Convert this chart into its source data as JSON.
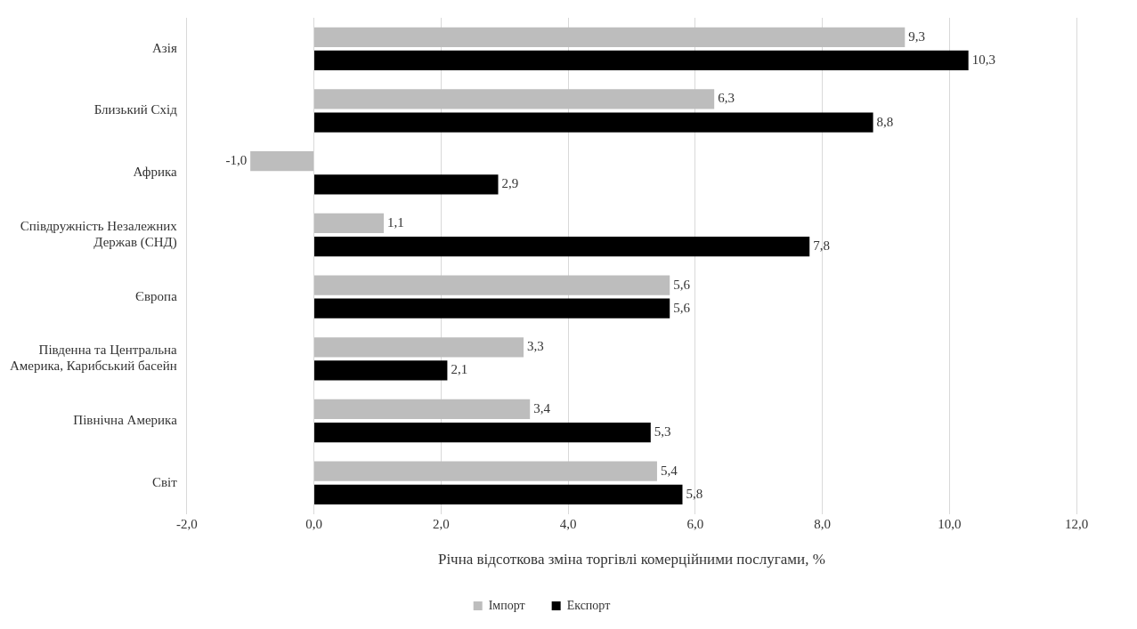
{
  "chart_data": {
    "type": "bar",
    "orientation": "horizontal",
    "categories": [
      "Азія",
      "Близький Схід",
      "Африка",
      "Співдружність Незалежних Держав (СНД)",
      "Європа",
      "Південна та Центральна Америка, Карибський басейн",
      "Північна Америка",
      "Світ"
    ],
    "series": [
      {
        "name": "Імпорт",
        "color": "#bdbdbd",
        "values": [
          9.3,
          6.3,
          -1.0,
          1.1,
          5.6,
          3.3,
          3.4,
          5.4
        ],
        "value_labels": [
          "9,3",
          "6,3",
          "-1,0",
          "1,1",
          "5,6",
          "3,3",
          "3,4",
          "5,4"
        ]
      },
      {
        "name": "Експорт",
        "color": "#000000",
        "values": [
          10.3,
          8.8,
          2.9,
          7.8,
          5.6,
          2.1,
          5.3,
          5.8
        ],
        "value_labels": [
          "10,3",
          "8,8",
          "2,9",
          "7,8",
          "5,6",
          "2,1",
          "5,3",
          "5,8"
        ]
      }
    ],
    "xlabel": "Річна відсоткова зміна торгівлі комерційними послугами, %",
    "xlim": [
      -2,
      12
    ],
    "xticks": [
      {
        "value": -2,
        "label": "-2,0"
      },
      {
        "value": 0,
        "label": "0,0"
      },
      {
        "value": 2,
        "label": "2,0"
      },
      {
        "value": 4,
        "label": "4,0"
      },
      {
        "value": 6,
        "label": "6,0"
      },
      {
        "value": 8,
        "label": "8,0"
      },
      {
        "value": 10,
        "label": "10,0"
      },
      {
        "value": 12,
        "label": "12,0"
      }
    ],
    "grid": "x",
    "legend": "bottom"
  }
}
